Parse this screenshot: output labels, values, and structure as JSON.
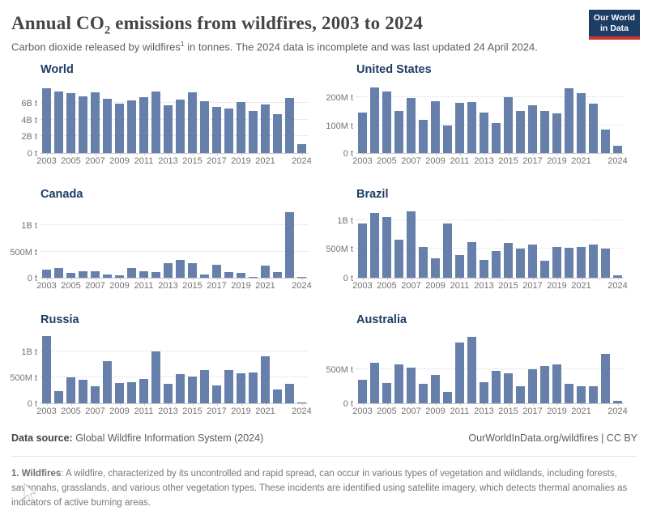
{
  "header": {
    "title_pre": "Annual CO",
    "title_sub": "2",
    "title_post": " emissions from wildfires, 2003 to 2024",
    "subtitle_pre": "Carbon dioxide released by wildfires",
    "subtitle_sup": "1",
    "subtitle_post": " in tonnes. The 2024 data is incomplete and was last updated 24 April 2024.",
    "logo_line1": "Our World",
    "logo_line2": "in Data"
  },
  "footer": {
    "datasource_label": "Data source:",
    "datasource_value": " Global Wildfire Information System (2024)",
    "attribution": "OurWorldInData.org/wildfires | CC BY"
  },
  "footnote": {
    "bold": "1. Wildfires",
    "text": ": A wildfire, characterized by its uncontrolled and rapid spread, can occur in various types of vegetation and wildlands, including forests, savannahs, grasslands, and various other vegetation types. These incidents are identified using satellite imagery, which detects thermal anomalies as indicators of active burning areas."
  },
  "colors": {
    "bar": "#6780ab",
    "navy": "#1d3d63",
    "logo_red": "#cc3530",
    "grid": "#d9d9d9",
    "axis": "#c9c9c9",
    "tick_text": "#737373"
  },
  "chart_data": [
    {
      "type": "bar",
      "title": "World",
      "unit": "tonnes",
      "x": [
        2003,
        2004,
        2005,
        2006,
        2007,
        2008,
        2009,
        2010,
        2011,
        2012,
        2013,
        2014,
        2015,
        2016,
        2017,
        2018,
        2019,
        2020,
        2021,
        2022,
        2023,
        2024
      ],
      "values_million_tonnes": [
        7700,
        7300,
        7150,
        6800,
        7250,
        6450,
        5900,
        6250,
        6650,
        7300,
        5650,
        6350,
        7200,
        6200,
        5500,
        5300,
        6050,
        5000,
        5800,
        4650,
        6550,
        1050
      ],
      "ylim_million_tonnes": [
        0,
        8200
      ],
      "yticks": [
        {
          "value": 2000,
          "label": "2B t"
        },
        {
          "value": 4000,
          "label": "4B t"
        },
        {
          "value": 6000,
          "label": "6B t"
        }
      ],
      "zero_label": "0 t",
      "xticks": [
        {
          "i": 0,
          "label": "2003"
        },
        {
          "i": 2,
          "label": "2005"
        },
        {
          "i": 4,
          "label": "2007"
        },
        {
          "i": 6,
          "label": "2009"
        },
        {
          "i": 8,
          "label": "2011"
        },
        {
          "i": 10,
          "label": "2013"
        },
        {
          "i": 12,
          "label": "2015"
        },
        {
          "i": 14,
          "label": "2017"
        },
        {
          "i": 16,
          "label": "2019"
        },
        {
          "i": 18,
          "label": "2021"
        },
        {
          "i": 21,
          "label": "2024"
        }
      ],
      "grid": true,
      "col": 0,
      "row": 0
    },
    {
      "type": "bar",
      "title": "United States",
      "unit": "tonnes",
      "x": [
        2003,
        2004,
        2005,
        2006,
        2007,
        2008,
        2009,
        2010,
        2011,
        2012,
        2013,
        2014,
        2015,
        2016,
        2017,
        2018,
        2019,
        2020,
        2021,
        2022,
        2023,
        2024
      ],
      "values_million_tonnes": [
        145,
        237,
        223,
        153,
        198,
        120,
        187,
        100,
        180,
        183,
        145,
        107,
        202,
        153,
        173,
        151,
        142,
        232,
        215,
        177,
        85,
        25
      ],
      "ylim_million_tonnes": [
        0,
        248
      ],
      "yticks": [
        {
          "value": 100,
          "label": "100M t"
        },
        {
          "value": 200,
          "label": "200M t"
        }
      ],
      "zero_label": "0 t",
      "xticks": [
        {
          "i": 0,
          "label": "2003"
        },
        {
          "i": 2,
          "label": "2005"
        },
        {
          "i": 4,
          "label": "2007"
        },
        {
          "i": 6,
          "label": "2009"
        },
        {
          "i": 8,
          "label": "2011"
        },
        {
          "i": 10,
          "label": "2013"
        },
        {
          "i": 12,
          "label": "2015"
        },
        {
          "i": 14,
          "label": "2017"
        },
        {
          "i": 16,
          "label": "2019"
        },
        {
          "i": 18,
          "label": "2021"
        },
        {
          "i": 21,
          "label": "2024"
        }
      ],
      "grid": true,
      "col": 1,
      "row": 0
    },
    {
      "type": "bar",
      "title": "Canada",
      "unit": "tonnes",
      "x": [
        2003,
        2004,
        2005,
        2006,
        2007,
        2008,
        2009,
        2010,
        2011,
        2012,
        2013,
        2014,
        2015,
        2016,
        2017,
        2018,
        2019,
        2020,
        2021,
        2022,
        2023,
        2024
      ],
      "values_million_tonnes": [
        157,
        190,
        90,
        130,
        126,
        60,
        45,
        180,
        126,
        111,
        285,
        335,
        270,
        55,
        250,
        115,
        95,
        12,
        234,
        105,
        1250,
        8
      ],
      "ylim_million_tonnes": [
        0,
        1310
      ],
      "yticks": [
        {
          "value": 500,
          "label": "500M t"
        },
        {
          "value": 1000,
          "label": "1B t"
        }
      ],
      "zero_label": "0 t",
      "xticks": [
        {
          "i": 0,
          "label": "2003"
        },
        {
          "i": 2,
          "label": "2005"
        },
        {
          "i": 4,
          "label": "2007"
        },
        {
          "i": 6,
          "label": "2009"
        },
        {
          "i": 8,
          "label": "2011"
        },
        {
          "i": 10,
          "label": "2013"
        },
        {
          "i": 12,
          "label": "2015"
        },
        {
          "i": 14,
          "label": "2017"
        },
        {
          "i": 16,
          "label": "2019"
        },
        {
          "i": 18,
          "label": "2021"
        },
        {
          "i": 21,
          "label": "2024"
        }
      ],
      "grid": true,
      "col": 0,
      "row": 1
    },
    {
      "type": "bar",
      "title": "Brazil",
      "unit": "tonnes",
      "x": [
        2003,
        2004,
        2005,
        2006,
        2007,
        2008,
        2009,
        2010,
        2011,
        2012,
        2013,
        2014,
        2015,
        2016,
        2017,
        2018,
        2019,
        2020,
        2021,
        2022,
        2023,
        2024
      ],
      "values_million_tonnes": [
        940,
        1120,
        1060,
        660,
        1160,
        540,
        340,
        940,
        390,
        620,
        310,
        460,
        600,
        500,
        570,
        300,
        530,
        520,
        540,
        570,
        500,
        40
      ],
      "ylim_million_tonnes": [
        0,
        1195
      ],
      "yticks": [
        {
          "value": 500,
          "label": "500M t"
        },
        {
          "value": 1000,
          "label": "1B t"
        }
      ],
      "zero_label": "0 t",
      "xticks": [
        {
          "i": 0,
          "label": "2003"
        },
        {
          "i": 2,
          "label": "2005"
        },
        {
          "i": 4,
          "label": "2007"
        },
        {
          "i": 6,
          "label": "2009"
        },
        {
          "i": 8,
          "label": "2011"
        },
        {
          "i": 10,
          "label": "2013"
        },
        {
          "i": 12,
          "label": "2015"
        },
        {
          "i": 14,
          "label": "2017"
        },
        {
          "i": 16,
          "label": "2019"
        },
        {
          "i": 18,
          "label": "2021"
        },
        {
          "i": 21,
          "label": "2024"
        }
      ],
      "grid": true,
      "col": 1,
      "row": 1
    },
    {
      "type": "bar",
      "title": "Russia",
      "unit": "tonnes",
      "x": [
        2003,
        2004,
        2005,
        2006,
        2007,
        2008,
        2009,
        2010,
        2011,
        2012,
        2013,
        2014,
        2015,
        2016,
        2017,
        2018,
        2019,
        2020,
        2021,
        2022,
        2023,
        2024
      ],
      "values_million_tonnes": [
        1290,
        240,
        500,
        445,
        330,
        810,
        390,
        405,
        470,
        1000,
        380,
        560,
        520,
        645,
        350,
        640,
        570,
        590,
        910,
        260,
        380,
        16
      ],
      "ylim_million_tonnes": [
        0,
        1325
      ],
      "yticks": [
        {
          "value": 500,
          "label": "500M t"
        },
        {
          "value": 1000,
          "label": "1B t"
        }
      ],
      "zero_label": "0 t",
      "xticks": [
        {
          "i": 0,
          "label": "2003"
        },
        {
          "i": 2,
          "label": "2005"
        },
        {
          "i": 4,
          "label": "2007"
        },
        {
          "i": 6,
          "label": "2009"
        },
        {
          "i": 8,
          "label": "2011"
        },
        {
          "i": 10,
          "label": "2013"
        },
        {
          "i": 12,
          "label": "2015"
        },
        {
          "i": 14,
          "label": "2017"
        },
        {
          "i": 16,
          "label": "2019"
        },
        {
          "i": 18,
          "label": "2021"
        },
        {
          "i": 21,
          "label": "2024"
        }
      ],
      "grid": true,
      "col": 0,
      "row": 2
    },
    {
      "type": "bar",
      "title": "Australia",
      "unit": "tonnes",
      "x": [
        2003,
        2004,
        2005,
        2006,
        2007,
        2008,
        2009,
        2010,
        2011,
        2012,
        2013,
        2014,
        2015,
        2016,
        2017,
        2018,
        2019,
        2020,
        2021,
        2022,
        2023,
        2024
      ],
      "values_million_tonnes": [
        340,
        600,
        300,
        570,
        520,
        290,
        420,
        170,
        890,
        970,
        310,
        480,
        440,
        250,
        500,
        550,
        570,
        290,
        250,
        250,
        720,
        30
      ],
      "ylim_million_tonnes": [
        0,
        1010
      ],
      "yticks": [
        {
          "value": 500,
          "label": "500M t"
        }
      ],
      "zero_label": "0 t",
      "xticks": [
        {
          "i": 0,
          "label": "2003"
        },
        {
          "i": 2,
          "label": "2005"
        },
        {
          "i": 4,
          "label": "2007"
        },
        {
          "i": 6,
          "label": "2009"
        },
        {
          "i": 8,
          "label": "2011"
        },
        {
          "i": 10,
          "label": "2013"
        },
        {
          "i": 12,
          "label": "2015"
        },
        {
          "i": 14,
          "label": "2017"
        },
        {
          "i": 16,
          "label": "2019"
        },
        {
          "i": 18,
          "label": "2021"
        },
        {
          "i": 21,
          "label": "2024"
        }
      ],
      "grid": true,
      "col": 1,
      "row": 2
    }
  ]
}
